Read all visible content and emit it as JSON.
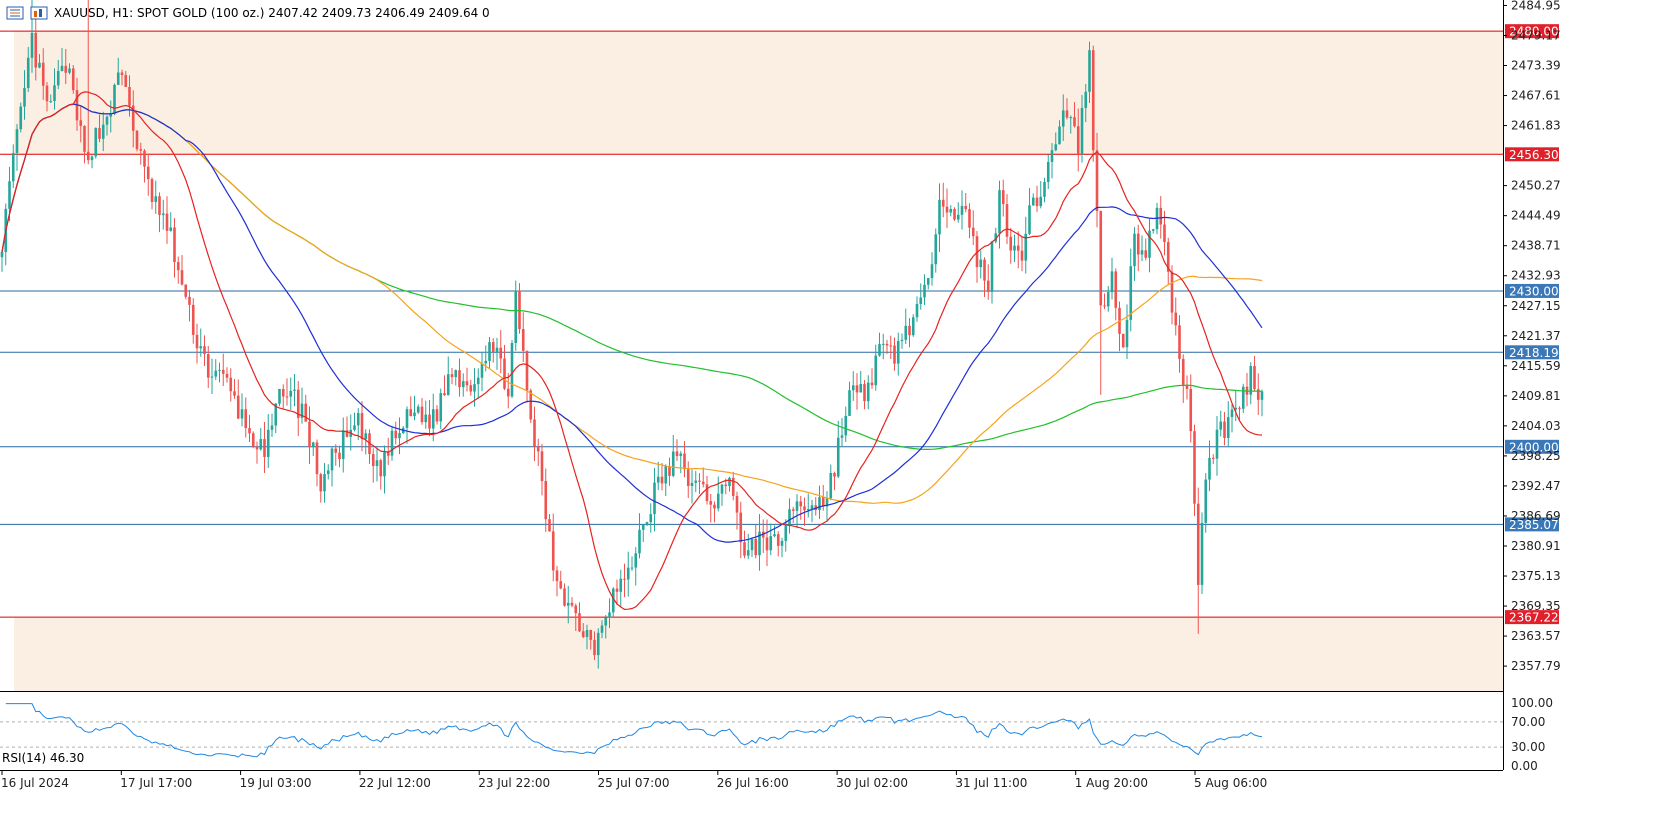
{
  "header": {
    "symbol": "XAUUSD",
    "timeframe": "H1",
    "description": "SPOT GOLD (100 oz.)",
    "ohlc": "2407.42 2409.73 2406.49 2409.64",
    "extra": "0",
    "text": "XAUUSD, H1:  SPOT GOLD (100 oz.)  2407.42 2409.73 2406.49 2409.64  0"
  },
  "rsi_label": "RSI(14) 46.30",
  "colors": {
    "bull": "#26a69a",
    "bear": "#ef5350",
    "ma20": "#e6231f",
    "ma50": "#1f2fd6",
    "ma100": "#f7a21b",
    "ma200": "#22c02c",
    "zone": "#fbeee2",
    "res_line": "#e00000",
    "sup_line": "#2a6aa0",
    "rsi": "#1e88e5"
  },
  "chart_data": {
    "type": "candlestick",
    "symbol": "XAUUSD",
    "timeframe": "H1",
    "ylim": [
      2353.0,
      2486.0
    ],
    "price_ticks": [
      "2484.95",
      "2479.17",
      "2473.39",
      "2467.61",
      "2461.83",
      "2450.27",
      "2444.49",
      "2438.71",
      "2432.93",
      "2427.15",
      "2421.37",
      "2415.59",
      "2409.81",
      "2404.03",
      "2398.25",
      "2392.47",
      "2386.69",
      "2380.91",
      "2375.13",
      "2369.35",
      "2363.57",
      "2357.79"
    ],
    "time_labels": [
      "16 Jul 2024",
      "17 Jul 17:00",
      "19 Jul 03:00",
      "22 Jul 12:00",
      "23 Jul 22:00",
      "25 Jul 07:00",
      "26 Jul 16:00",
      "30 Jul 02:00",
      "31 Jul 11:00",
      "1 Aug 20:00",
      "5 Aug 06:00"
    ],
    "horizontal_levels": [
      {
        "price": 2480.0,
        "label": "2480.00",
        "kind": "resistance"
      },
      {
        "price": 2456.3,
        "label": "2456.30",
        "kind": "resistance"
      },
      {
        "price": 2430.0,
        "label": "2430.00",
        "kind": "support"
      },
      {
        "price": 2418.19,
        "label": "2418.19",
        "kind": "support"
      },
      {
        "price": 2400.0,
        "label": "2400.00",
        "kind": "support"
      },
      {
        "price": 2385.07,
        "label": "2385.07",
        "kind": "support"
      },
      {
        "price": 2367.22,
        "label": "2367.22",
        "kind": "resistance"
      }
    ],
    "zones": [
      [
        2456.3,
        2480.0
      ],
      [
        2353.0,
        2367.22
      ]
    ],
    "price_path": [
      [
        0,
        2440
      ],
      [
        8,
        2478
      ],
      [
        12,
        2465
      ],
      [
        17,
        2474
      ],
      [
        22,
        2456
      ],
      [
        27,
        2462
      ],
      [
        32,
        2472
      ],
      [
        38,
        2452
      ],
      [
        45,
        2440
      ],
      [
        50,
        2425
      ],
      [
        55,
        2415
      ],
      [
        60,
        2412
      ],
      [
        65,
        2404
      ],
      [
        70,
        2398
      ],
      [
        75,
        2412
      ],
      [
        80,
        2407
      ],
      [
        85,
        2393
      ],
      [
        90,
        2400
      ],
      [
        95,
        2404
      ],
      [
        100,
        2395
      ],
      [
        105,
        2402
      ],
      [
        110,
        2407
      ],
      [
        115,
        2405
      ],
      [
        120,
        2415
      ],
      [
        125,
        2412
      ],
      [
        130,
        2420
      ],
      [
        135,
        2412
      ],
      [
        137,
        2428
      ],
      [
        140,
        2410
      ],
      [
        143,
        2397
      ],
      [
        147,
        2377
      ],
      [
        151,
        2370
      ],
      [
        155,
        2365
      ],
      [
        158,
        2362
      ],
      [
        160,
        2367
      ],
      [
        163,
        2372
      ],
      [
        167,
        2375
      ],
      [
        170,
        2383
      ],
      [
        175,
        2393
      ],
      [
        180,
        2398
      ],
      [
        185,
        2392
      ],
      [
        190,
        2390
      ],
      [
        195,
        2393
      ],
      [
        198,
        2378
      ],
      [
        203,
        2383
      ],
      [
        207,
        2380
      ],
      [
        210,
        2388
      ],
      [
        215,
        2389
      ],
      [
        220,
        2390
      ],
      [
        223,
        2400
      ],
      [
        226,
        2410
      ],
      [
        230,
        2410
      ],
      [
        234,
        2418
      ],
      [
        238,
        2418
      ],
      [
        243,
        2425
      ],
      [
        247,
        2430
      ],
      [
        250,
        2450
      ],
      [
        253,
        2446
      ],
      [
        257,
        2444
      ],
      [
        260,
        2436
      ],
      [
        263,
        2432
      ],
      [
        266,
        2448
      ],
      [
        269,
        2440
      ],
      [
        272,
        2438
      ],
      [
        275,
        2447
      ],
      [
        278,
        2451
      ],
      [
        281,
        2460
      ],
      [
        284,
        2465
      ],
      [
        287,
        2458
      ],
      [
        290,
        2475
      ],
      [
        293,
        2428
      ],
      [
        296,
        2432
      ],
      [
        299,
        2420
      ],
      [
        302,
        2440
      ],
      [
        305,
        2435
      ],
      [
        308,
        2448
      ],
      [
        311,
        2432
      ],
      [
        314,
        2418
      ],
      [
        317,
        2405
      ],
      [
        319,
        2375
      ],
      [
        321,
        2395
      ],
      [
        324,
        2402
      ],
      [
        327,
        2405
      ],
      [
        330,
        2408
      ],
      [
        333,
        2414
      ],
      [
        336,
        2410
      ]
    ],
    "rsi": {
      "period": 14,
      "value": 46.3,
      "ylim": [
        0,
        100
      ],
      "levels": [
        70,
        30
      ],
      "ticks": [
        "100.00",
        "70.00",
        "30.00",
        "0.00"
      ]
    }
  }
}
